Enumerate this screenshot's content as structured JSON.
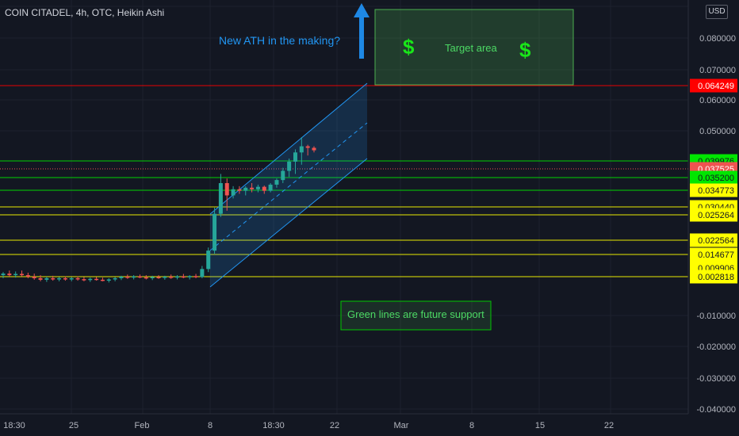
{
  "header": {
    "symbol_title": "COIN CITADEL, 4h, OTC, Heikin Ashi",
    "currency_badge": "USD"
  },
  "annotations": {
    "ath_text": "New ATH in the making?",
    "target_area_text": "Target area",
    "dollar_sign": "$",
    "support_note": "Green lines are future support"
  },
  "colors": {
    "background": "#131722",
    "grid": "#1e222d",
    "axis_text": "#b2b5be",
    "candle_up": "#26a69a",
    "candle_down": "#ef5350",
    "green_line": "#00e600",
    "yellow_line": "#ffff00",
    "red_line": "#ff0000",
    "channel": "#2196f3",
    "target_box": "#4caf50",
    "ath_arrow": "#1e88e5"
  },
  "chart_data": {
    "type": "candlestick",
    "title": "COIN CITADEL, 4h, OTC, Heikin Ashi",
    "currency": "USD",
    "y_axis_ticks": [
      "0.080000",
      "0.070000",
      "0.060000",
      "0.050000",
      "-0.010000",
      "-0.020000",
      "-0.030000",
      "-0.040000"
    ],
    "x_axis_ticks": [
      "18:30",
      "25",
      "Feb",
      "8",
      "18:30",
      "22",
      "Mar",
      "8",
      "15",
      "22"
    ],
    "horizontal_levels": [
      {
        "value": 0.064249,
        "color": "red",
        "label": "0.064249"
      },
      {
        "value": 0.039976,
        "color": "green",
        "label": "0.039976"
      },
      {
        "value": 0.037525,
        "color": "current",
        "label": "0.037525"
      },
      {
        "value": 0.0352,
        "color": "green",
        "label": "0.035200"
      },
      {
        "value": 0.034773,
        "color": "yellow",
        "label": "0.034773"
      },
      {
        "value": 0.03044,
        "color": "yellow",
        "label": "0.030440"
      },
      {
        "value": 0.025264,
        "color": "yellow",
        "label": "0.025264"
      },
      {
        "value": 0.022564,
        "color": "yellow",
        "label": "0.022564"
      },
      {
        "value": 0.014677,
        "color": "yellow",
        "label": "0.014677"
      },
      {
        "value": 0.009906,
        "color": "yellow",
        "label": "0.009906"
      },
      {
        "value": 0.002818,
        "color": "yellow",
        "label": "0.002818"
      }
    ],
    "candles": [
      {
        "o": 0.003,
        "h": 0.004,
        "l": 0.002,
        "c": 0.0035
      },
      {
        "o": 0.0035,
        "h": 0.0045,
        "l": 0.0025,
        "c": 0.003
      },
      {
        "o": 0.003,
        "h": 0.0042,
        "l": 0.0022,
        "c": 0.0034
      },
      {
        "o": 0.0034,
        "h": 0.0045,
        "l": 0.0025,
        "c": 0.003
      },
      {
        "o": 0.003,
        "h": 0.0038,
        "l": 0.002,
        "c": 0.0025
      },
      {
        "o": 0.0025,
        "h": 0.0035,
        "l": 0.0015,
        "c": 0.002
      },
      {
        "o": 0.002,
        "h": 0.003,
        "l": 0.001,
        "c": 0.0015
      },
      {
        "o": 0.0015,
        "h": 0.0025,
        "l": 0.0008,
        "c": 0.002
      },
      {
        "o": 0.002,
        "h": 0.0028,
        "l": 0.0012,
        "c": 0.0016
      },
      {
        "o": 0.0016,
        "h": 0.0024,
        "l": 0.001,
        "c": 0.002
      },
      {
        "o": 0.002,
        "h": 0.0026,
        "l": 0.0012,
        "c": 0.0016
      },
      {
        "o": 0.0016,
        "h": 0.0024,
        "l": 0.001,
        "c": 0.002
      },
      {
        "o": 0.002,
        "h": 0.0026,
        "l": 0.0012,
        "c": 0.0017
      },
      {
        "o": 0.0017,
        "h": 0.0024,
        "l": 0.001,
        "c": 0.0014
      },
      {
        "o": 0.0014,
        "h": 0.0022,
        "l": 0.0008,
        "c": 0.0018
      },
      {
        "o": 0.0018,
        "h": 0.0024,
        "l": 0.0012,
        "c": 0.0015
      },
      {
        "o": 0.0015,
        "h": 0.0022,
        "l": 0.001,
        "c": 0.0012
      },
      {
        "o": 0.0012,
        "h": 0.002,
        "l": 0.0006,
        "c": 0.0016
      },
      {
        "o": 0.0016,
        "h": 0.0024,
        "l": 0.001,
        "c": 0.002
      },
      {
        "o": 0.002,
        "h": 0.0028,
        "l": 0.0014,
        "c": 0.0025
      },
      {
        "o": 0.0025,
        "h": 0.0032,
        "l": 0.0018,
        "c": 0.0022
      },
      {
        "o": 0.0022,
        "h": 0.003,
        "l": 0.0016,
        "c": 0.0026
      },
      {
        "o": 0.0026,
        "h": 0.0032,
        "l": 0.002,
        "c": 0.0023
      },
      {
        "o": 0.0023,
        "h": 0.003,
        "l": 0.0016,
        "c": 0.002
      },
      {
        "o": 0.002,
        "h": 0.0028,
        "l": 0.0014,
        "c": 0.0024
      },
      {
        "o": 0.0024,
        "h": 0.003,
        "l": 0.0018,
        "c": 0.0021
      },
      {
        "o": 0.0021,
        "h": 0.0028,
        "l": 0.0015,
        "c": 0.0025
      },
      {
        "o": 0.0025,
        "h": 0.0032,
        "l": 0.0018,
        "c": 0.0022
      },
      {
        "o": 0.0022,
        "h": 0.003,
        "l": 0.0016,
        "c": 0.0026
      },
      {
        "o": 0.0026,
        "h": 0.0034,
        "l": 0.002,
        "c": 0.0023
      },
      {
        "o": 0.0023,
        "h": 0.003,
        "l": 0.0016,
        "c": 0.0027
      },
      {
        "o": 0.0027,
        "h": 0.0034,
        "l": 0.002,
        "c": 0.0024
      },
      {
        "o": 0.0024,
        "h": 0.006,
        "l": 0.002,
        "c": 0.005
      },
      {
        "o": 0.005,
        "h": 0.012,
        "l": 0.004,
        "c": 0.011
      },
      {
        "o": 0.011,
        "h": 0.025,
        "l": 0.01,
        "c": 0.023
      },
      {
        "o": 0.023,
        "h": 0.036,
        "l": 0.022,
        "c": 0.033
      },
      {
        "o": 0.033,
        "h": 0.0345,
        "l": 0.024,
        "c": 0.029
      },
      {
        "o": 0.029,
        "h": 0.032,
        "l": 0.028,
        "c": 0.031
      },
      {
        "o": 0.031,
        "h": 0.032,
        "l": 0.0295,
        "c": 0.0305
      },
      {
        "o": 0.0305,
        "h": 0.032,
        "l": 0.029,
        "c": 0.0315
      },
      {
        "o": 0.0315,
        "h": 0.033,
        "l": 0.03,
        "c": 0.031
      },
      {
        "o": 0.031,
        "h": 0.0325,
        "l": 0.03,
        "c": 0.0318
      },
      {
        "o": 0.0318,
        "h": 0.0322,
        "l": 0.0295,
        "c": 0.0305
      },
      {
        "o": 0.0305,
        "h": 0.033,
        "l": 0.03,
        "c": 0.0325
      },
      {
        "o": 0.0325,
        "h": 0.0345,
        "l": 0.0315,
        "c": 0.034
      },
      {
        "o": 0.034,
        "h": 0.038,
        "l": 0.033,
        "c": 0.037
      },
      {
        "o": 0.037,
        "h": 0.041,
        "l": 0.035,
        "c": 0.04
      },
      {
        "o": 0.04,
        "h": 0.044,
        "l": 0.036,
        "c": 0.043
      },
      {
        "o": 0.043,
        "h": 0.048,
        "l": 0.039,
        "c": 0.045
      },
      {
        "o": 0.045,
        "h": 0.0455,
        "l": 0.042,
        "c": 0.0445
      },
      {
        "o": 0.0445,
        "h": 0.045,
        "l": 0.043,
        "c": 0.0437
      }
    ]
  }
}
